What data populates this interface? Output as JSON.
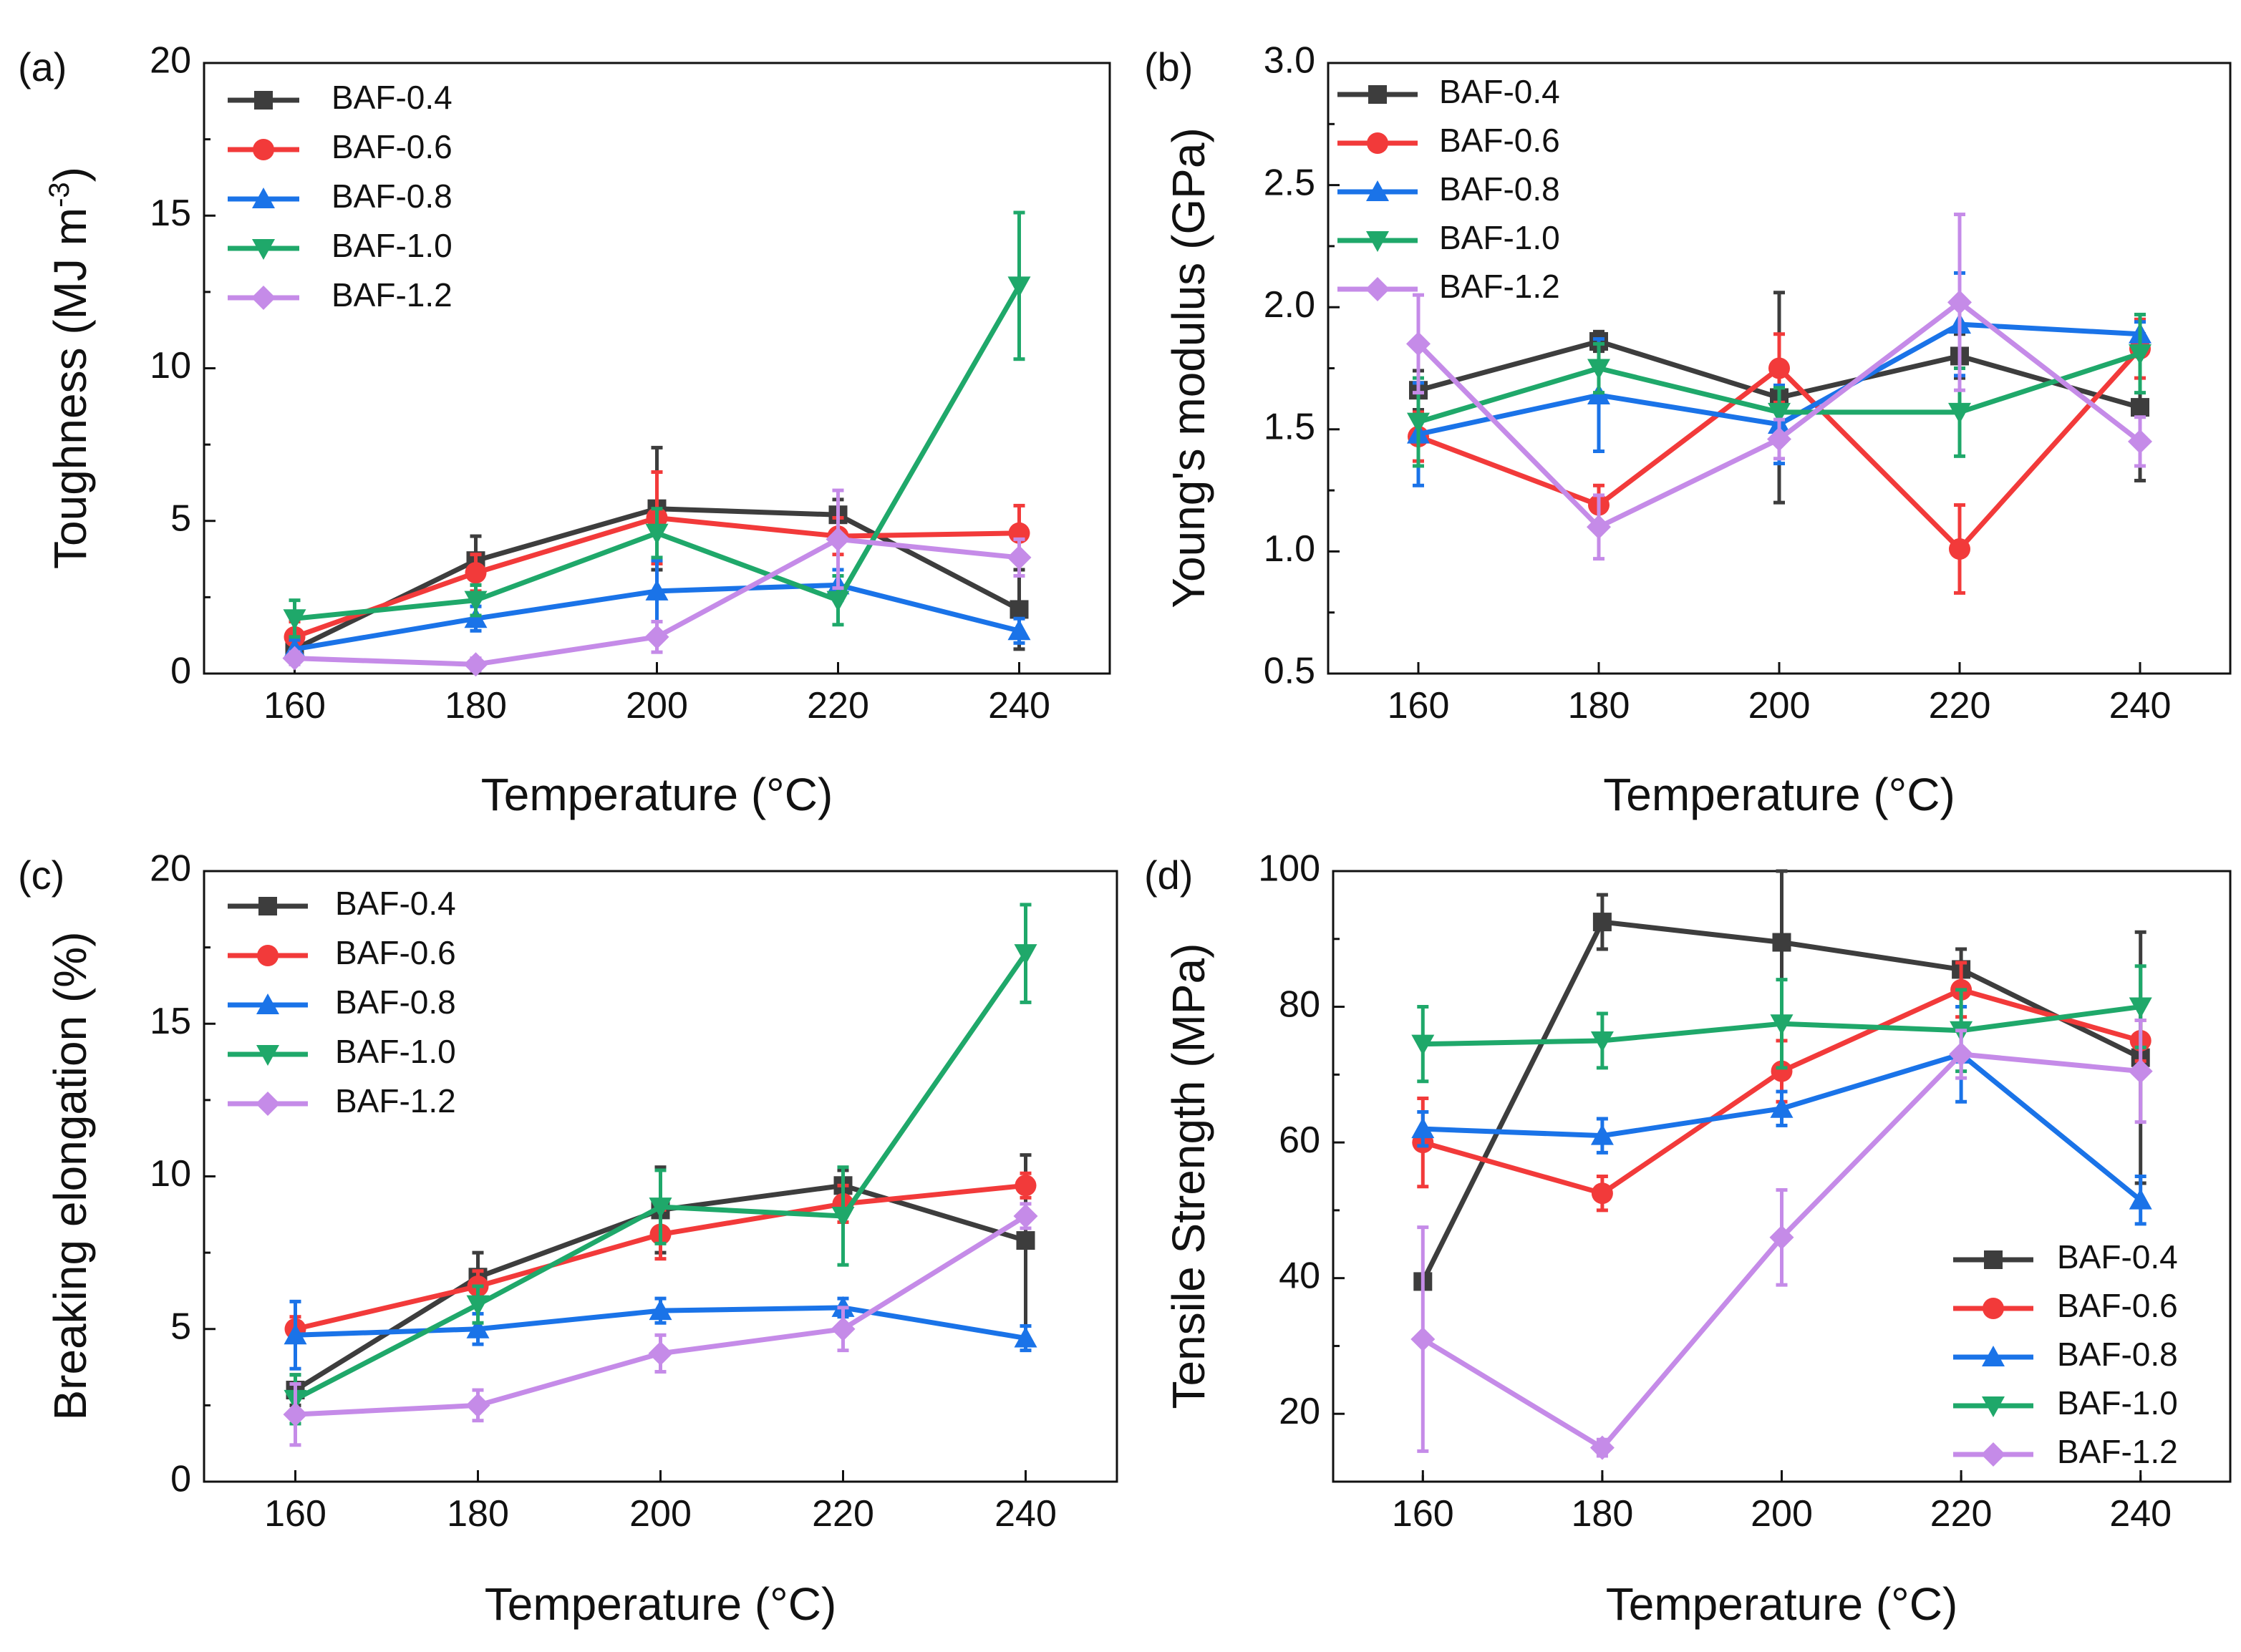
{
  "chart_data": [
    {
      "panel": "(a)",
      "type": "line",
      "xlabel": "Temperature (°C)",
      "ylabel": "Toughness (MJ m⁻³)",
      "ylabel_main": "Toughness (MJ m",
      "ylabel_sup": "-3",
      "ylabel_end": ")",
      "x": [
        160,
        180,
        200,
        220,
        240
      ],
      "xlim": [
        150,
        250
      ],
      "ylim": [
        0,
        20
      ],
      "yticks": [
        0,
        5,
        10,
        15,
        20
      ],
      "legend_position": "top-left",
      "series": [
        {
          "name": "BAF-0.4",
          "values": [
            0.8,
            3.7,
            5.4,
            5.2,
            2.1
          ],
          "errors": [
            0.4,
            0.8,
            2.0,
            0.5,
            1.3
          ]
        },
        {
          "name": "BAF-0.6",
          "values": [
            1.2,
            3.3,
            5.1,
            4.5,
            4.6
          ],
          "errors": [
            0.5,
            0.6,
            1.5,
            0.6,
            0.9
          ]
        },
        {
          "name": "BAF-0.8",
          "values": [
            0.8,
            1.8,
            2.7,
            2.9,
            1.4
          ],
          "errors": [
            0.3,
            0.4,
            1.0,
            0.5,
            0.4
          ]
        },
        {
          "name": "BAF-1.0",
          "values": [
            1.8,
            2.4,
            4.6,
            2.4,
            12.7
          ],
          "errors": [
            0.6,
            0.5,
            0.8,
            0.8,
            2.4
          ]
        },
        {
          "name": "BAF-1.2",
          "values": [
            0.5,
            0.3,
            1.2,
            4.4,
            3.8
          ],
          "errors": [
            0.2,
            0.2,
            0.5,
            1.6,
            0.6
          ]
        }
      ]
    },
    {
      "panel": "(b)",
      "type": "line",
      "xlabel": "Temperature (°C)",
      "ylabel": "Young's modulus (GPa)",
      "x": [
        160,
        180,
        200,
        220,
        240
      ],
      "xlim": [
        150,
        250
      ],
      "ylim": [
        0.5,
        3.0
      ],
      "yticks": [
        0.5,
        1.0,
        1.5,
        2.0,
        2.5,
        3.0
      ],
      "legend_position": "top-left",
      "series": [
        {
          "name": "BAF-0.4",
          "values": [
            1.66,
            1.86,
            1.63,
            1.8,
            1.59
          ],
          "errors": [
            0.08,
            0.04,
            0.43,
            0.09,
            0.3
          ]
        },
        {
          "name": "BAF-0.6",
          "values": [
            1.47,
            1.19,
            1.75,
            1.01,
            1.83
          ],
          "errors": [
            0.1,
            0.08,
            0.14,
            0.18,
            0.12
          ]
        },
        {
          "name": "BAF-0.8",
          "values": [
            1.48,
            1.64,
            1.52,
            1.93,
            1.89
          ],
          "errors": [
            0.21,
            0.23,
            0.16,
            0.21,
            0.05
          ]
        },
        {
          "name": "BAF-1.0",
          "values": [
            1.53,
            1.75,
            1.57,
            1.57,
            1.81
          ],
          "errors": [
            0.18,
            0.1,
            0.1,
            0.18,
            0.16
          ]
        },
        {
          "name": "BAF-1.2",
          "values": [
            1.85,
            1.1,
            1.46,
            2.02,
            1.45
          ],
          "errors": [
            0.2,
            0.13,
            0.08,
            0.36,
            0.1
          ]
        }
      ]
    },
    {
      "panel": "(c)",
      "type": "line",
      "xlabel": "Temperature (°C)",
      "ylabel": "Breaking elongation (%)",
      "x": [
        160,
        180,
        200,
        220,
        240
      ],
      "xlim": [
        150,
        250
      ],
      "ylim": [
        0,
        20
      ],
      "yticks": [
        0,
        5,
        10,
        15,
        20
      ],
      "legend_position": "top-left",
      "series": [
        {
          "name": "BAF-0.4",
          "values": [
            3.0,
            6.7,
            8.9,
            9.7,
            7.9
          ],
          "errors": [
            0.5,
            0.8,
            1.4,
            0.5,
            2.8
          ]
        },
        {
          "name": "BAF-0.6",
          "values": [
            5.0,
            6.4,
            8.1,
            9.1,
            9.7
          ],
          "errors": [
            0.4,
            0.5,
            0.8,
            0.6,
            0.4
          ]
        },
        {
          "name": "BAF-0.8",
          "values": [
            4.8,
            5.0,
            5.6,
            5.7,
            4.7
          ],
          "errors": [
            1.1,
            0.5,
            0.4,
            0.3,
            0.4
          ]
        },
        {
          "name": "BAF-1.0",
          "values": [
            2.7,
            5.8,
            9.0,
            8.7,
            17.3
          ],
          "errors": [
            0.8,
            0.6,
            1.2,
            1.6,
            1.6
          ]
        },
        {
          "name": "BAF-1.2",
          "values": [
            2.2,
            2.5,
            4.2,
            5.0,
            8.7
          ],
          "errors": [
            1.0,
            0.5,
            0.6,
            0.7,
            0.4
          ]
        }
      ]
    },
    {
      "panel": "(d)",
      "type": "line",
      "xlabel": "Temperature (°C)",
      "ylabel": "Tensile Strength (MPa)",
      "x": [
        160,
        180,
        200,
        220,
        240
      ],
      "xlim": [
        150,
        250
      ],
      "ylim": [
        10,
        100
      ],
      "yticks": [
        20,
        40,
        60,
        80,
        100
      ],
      "legend_position": "bottom-right",
      "series": [
        {
          "name": "BAF-0.4",
          "values": [
            39.5,
            92.5,
            89.5,
            85.5,
            72.5
          ],
          "errors": [
            0.8,
            4.0,
            11.0,
            3.0,
            18.5
          ]
        },
        {
          "name": "BAF-0.6",
          "values": [
            60.0,
            52.5,
            70.5,
            82.5,
            75.0
          ],
          "errors": [
            6.5,
            2.5,
            4.5,
            4.0,
            3.0
          ]
        },
        {
          "name": "BAF-0.8",
          "values": [
            62.0,
            61.0,
            65.0,
            73.0,
            51.5
          ],
          "errors": [
            2.5,
            2.5,
            2.5,
            7.0,
            3.5
          ]
        },
        {
          "name": "BAF-1.0",
          "values": [
            74.5,
            75.0,
            77.5,
            76.5,
            80.0
          ],
          "errors": [
            5.5,
            4.0,
            6.5,
            6.0,
            6.0
          ]
        },
        {
          "name": "BAF-1.2",
          "values": [
            31.0,
            15.0,
            46.0,
            73.0,
            70.5
          ],
          "errors": [
            16.5,
            1.2,
            7.0,
            3.5,
            7.5
          ]
        }
      ]
    }
  ],
  "styles": {
    "series_colors": [
      "#3d3d3d",
      "#f23a3a",
      "#1a73e8",
      "#1fa86a",
      "#c58be8"
    ],
    "series_markers": [
      "square",
      "circle",
      "triangle-up",
      "triangle-down",
      "diamond"
    ]
  }
}
